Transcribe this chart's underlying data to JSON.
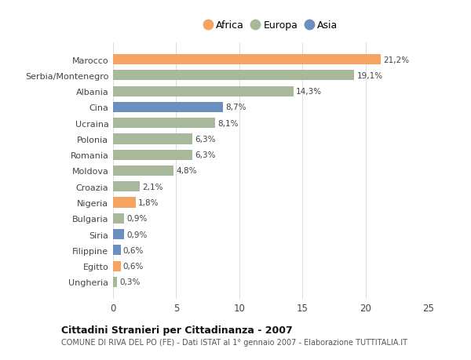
{
  "categories": [
    "Marocco",
    "Serbia/Montenegro",
    "Albania",
    "Cina",
    "Ucraina",
    "Polonia",
    "Romania",
    "Moldova",
    "Croazia",
    "Nigeria",
    "Bulgaria",
    "Siria",
    "Filippine",
    "Egitto",
    "Ungheria"
  ],
  "values": [
    21.2,
    19.1,
    14.3,
    8.7,
    8.1,
    6.3,
    6.3,
    4.8,
    2.1,
    1.8,
    0.9,
    0.9,
    0.6,
    0.6,
    0.3
  ],
  "labels": [
    "21,2%",
    "19,1%",
    "14,3%",
    "8,7%",
    "8,1%",
    "6,3%",
    "6,3%",
    "4,8%",
    "2,1%",
    "1,8%",
    "0,9%",
    "0,9%",
    "0,6%",
    "0,6%",
    "0,3%"
  ],
  "continents": [
    "Africa",
    "Europa",
    "Europa",
    "Asia",
    "Europa",
    "Europa",
    "Europa",
    "Europa",
    "Europa",
    "Africa",
    "Europa",
    "Asia",
    "Asia",
    "Africa",
    "Europa"
  ],
  "colors": {
    "Africa": "#F4A460",
    "Europa": "#A8B89A",
    "Asia": "#6B8FBF"
  },
  "title": "Cittadini Stranieri per Cittadinanza - 2007",
  "subtitle": "COMUNE DI RIVA DEL PO (FE) - Dati ISTAT al 1° gennaio 2007 - Elaborazione TUTTITALIA.IT",
  "xlim": [
    0,
    25
  ],
  "xticks": [
    0,
    5,
    10,
    15,
    20,
    25
  ],
  "background_color": "#ffffff",
  "grid_color": "#dddddd"
}
